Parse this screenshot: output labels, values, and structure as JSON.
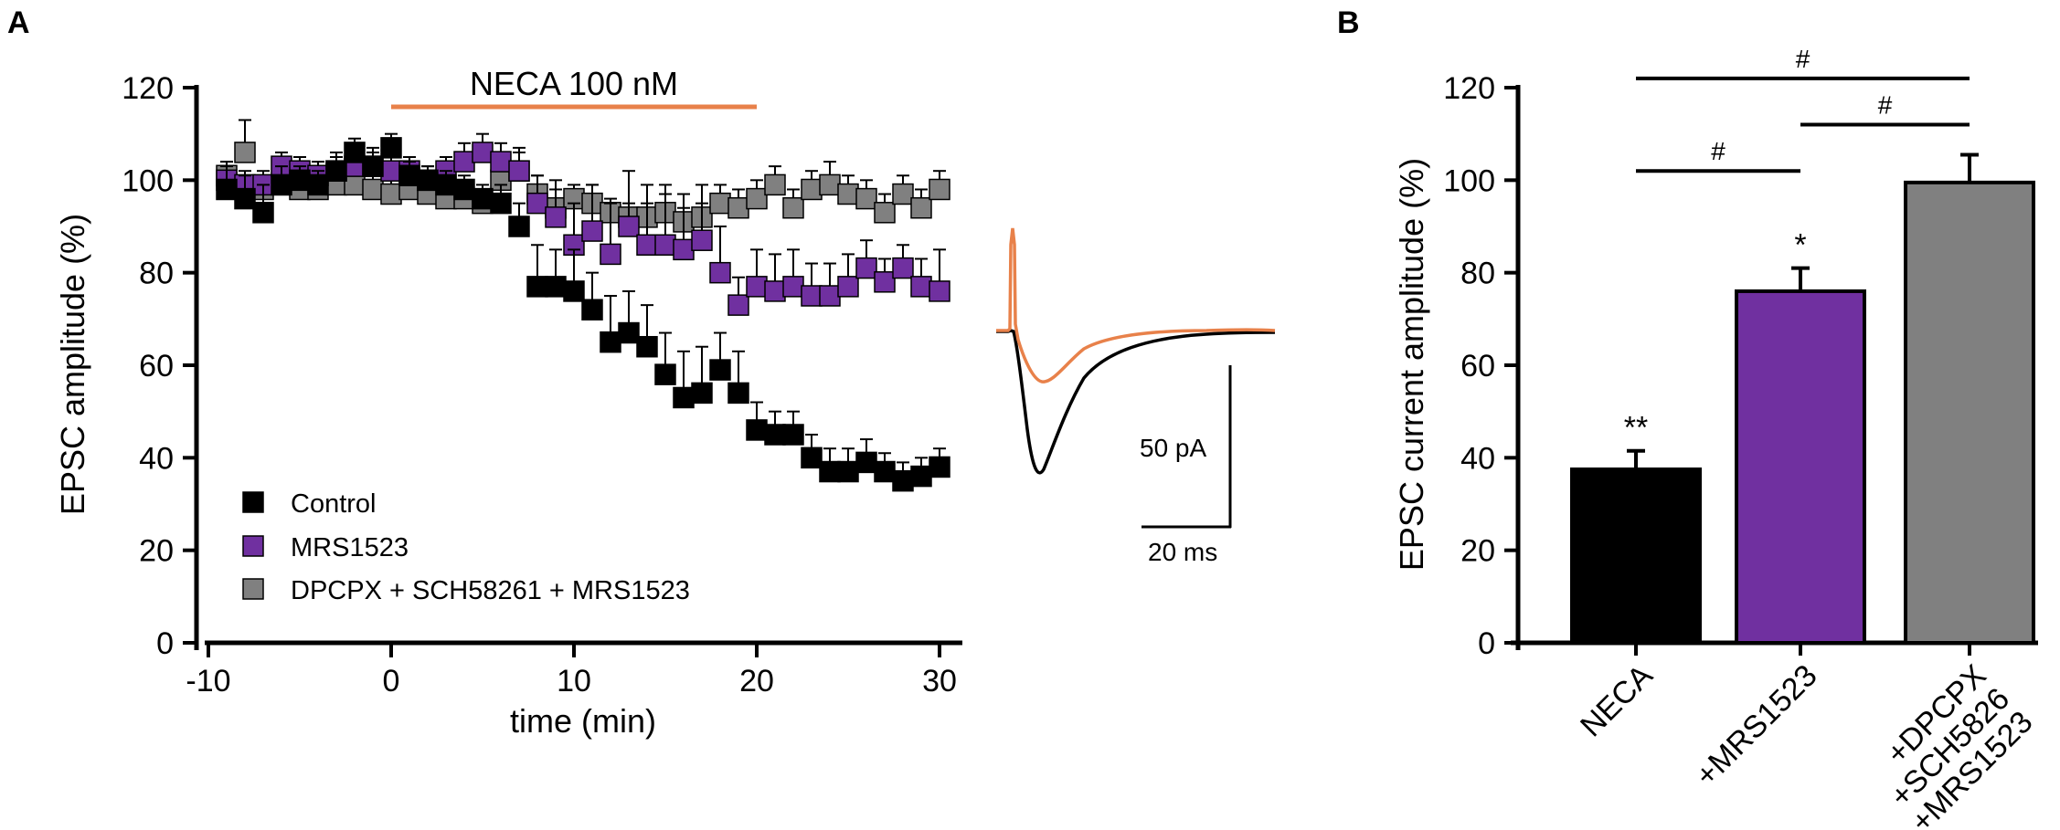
{
  "colors": {
    "control": "#000000",
    "mrs": "#7030a0",
    "dpcpx": "#808080",
    "neca_bar": "#e8814a",
    "trace_control": "#000000",
    "trace_neca": "#e8814a"
  },
  "scalebar": {
    "amplitude_label": "50 pA",
    "time_label": "20 ms"
  },
  "chart_data": [
    {
      "panel": "A",
      "type": "scatter",
      "xlabel": "time (min)",
      "ylabel": "EPSC amplitude (%)",
      "xlim": [
        -10,
        31
      ],
      "ylim": [
        0,
        120
      ],
      "xticks": [
        "-10",
        "0",
        "10",
        "20",
        "30"
      ],
      "yticks": [
        "0",
        "20",
        "40",
        "60",
        "80",
        "100",
        "120"
      ],
      "annotation": {
        "label": "NECA 100 nM",
        "start": 0,
        "end": 20
      },
      "legend": [
        "Control",
        "MRS1523",
        "DPCPX + SCH58261 + MRS1523"
      ],
      "series": [
        {
          "name": "Control",
          "x": [
            -9,
            -8,
            -7,
            -6,
            -5,
            -4,
            -3,
            -2,
            -1,
            0,
            1,
            2,
            3,
            4,
            5,
            6,
            7,
            8,
            9,
            10,
            11,
            12,
            13,
            14,
            15,
            16,
            17,
            18,
            19,
            20,
            21,
            22,
            23,
            24,
            25,
            26,
            27,
            28,
            29,
            30
          ],
          "y": [
            98,
            96,
            93,
            99,
            100,
            99,
            102,
            106,
            103,
            107,
            101,
            100,
            99,
            98,
            96,
            95,
            90,
            77,
            77,
            76,
            72,
            65,
            67,
            64,
            58,
            53,
            54,
            59,
            54,
            46,
            45,
            45,
            40,
            37,
            37,
            39,
            37,
            35,
            36,
            38
          ],
          "err": [
            6,
            5,
            6,
            4,
            3,
            3,
            4,
            3,
            4,
            3,
            3,
            3,
            3,
            3,
            3,
            4,
            5,
            9,
            8,
            9,
            8,
            10,
            9,
            9,
            9,
            10,
            10,
            8,
            9,
            6,
            5,
            5,
            5,
            5,
            5,
            5,
            4,
            4,
            4,
            4
          ]
        },
        {
          "name": "MRS1523",
          "x": [
            -9,
            -8,
            -7,
            -6,
            -5,
            -4,
            -3,
            -2,
            -1,
            0,
            1,
            2,
            3,
            4,
            5,
            6,
            7,
            8,
            9,
            10,
            11,
            12,
            13,
            14,
            15,
            16,
            17,
            18,
            19,
            20,
            21,
            22,
            23,
            24,
            25,
            26,
            27,
            28,
            29,
            30
          ],
          "y": [
            100,
            99,
            99,
            103,
            102,
            101,
            102,
            103,
            103,
            102,
            102,
            100,
            102,
            104,
            106,
            104,
            102,
            95,
            92,
            86,
            89,
            84,
            90,
            86,
            86,
            85,
            87,
            80,
            73,
            77,
            76,
            77,
            75,
            75,
            77,
            81,
            78,
            81,
            77,
            76
          ],
          "err": [
            3,
            3,
            3,
            3,
            3,
            3,
            3,
            3,
            3,
            3,
            3,
            3,
            3,
            4,
            4,
            4,
            5,
            6,
            8,
            9,
            10,
            11,
            12,
            13,
            13,
            12,
            12,
            10,
            6,
            8,
            8,
            8,
            7,
            7,
            7,
            6,
            5,
            5,
            6,
            9
          ]
        },
        {
          "name": "DPCPX + SCH58261 + MRS1523",
          "x": [
            -9,
            -8,
            -7,
            -6,
            -5,
            -4,
            -3,
            -2,
            -1,
            0,
            1,
            2,
            3,
            4,
            5,
            6,
            7,
            8,
            9,
            10,
            11,
            12,
            13,
            14,
            15,
            16,
            17,
            18,
            19,
            20,
            21,
            22,
            23,
            24,
            25,
            26,
            27,
            28,
            29,
            30
          ],
          "y": [
            101,
            106,
            98,
            99,
            98,
            98,
            99,
            99,
            98,
            97,
            98,
            97,
            96,
            96,
            95,
            100,
            102,
            97,
            94,
            96,
            95,
            93,
            92,
            92,
            93,
            91,
            92,
            95,
            94,
            96,
            99,
            94,
            98,
            99,
            97,
            96,
            93,
            97,
            94,
            98
          ],
          "err": [
            3,
            7,
            3,
            3,
            3,
            3,
            3,
            3,
            3,
            3,
            3,
            3,
            3,
            3,
            3,
            4,
            4,
            4,
            4,
            3,
            4,
            3,
            3,
            3,
            4,
            3,
            3,
            4,
            4,
            4,
            4,
            4,
            4,
            5,
            4,
            4,
            4,
            4,
            4,
            4
          ]
        }
      ]
    },
    {
      "panel": "B",
      "type": "bar",
      "ylabel": "EPSC current amplitude (%)",
      "ylim": [
        0,
        120
      ],
      "yticks": [
        "0",
        "20",
        "40",
        "60",
        "80",
        "100",
        "120"
      ],
      "categories": [
        "NECA",
        "+MRS1523",
        "+DPCPX\n+SCH5826\n+MRS1523"
      ],
      "values": [
        37.5,
        76,
        99.5
      ],
      "errors": [
        4,
        5,
        6
      ],
      "significance": [
        "**",
        "*",
        ""
      ],
      "comparisons": [
        {
          "from": 0,
          "to": 2,
          "label": "#",
          "y": 122
        },
        {
          "from": 1,
          "to": 2,
          "label": "#",
          "y": 112
        },
        {
          "from": 0,
          "to": 1,
          "label": "#",
          "y": 102
        }
      ]
    }
  ]
}
